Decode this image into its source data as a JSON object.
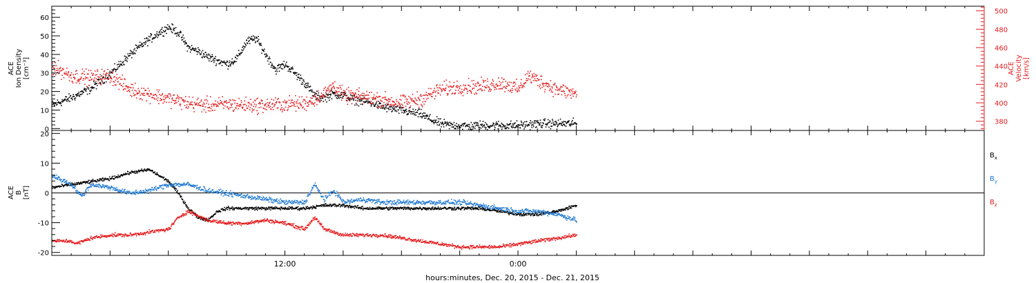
{
  "footer": {
    "xlabel": "hours:minutes, Dec. 20, 2015 - Dec. 21, 2015"
  },
  "colors": {
    "black": "#000000",
    "red": "#e41a1c",
    "blue": "#1f78d1"
  },
  "chart_data": [
    {
      "type": "scatter",
      "panel": "top",
      "ylabel_left": [
        "ACE",
        "Ion Density",
        "[cm⁻³]"
      ],
      "ylabel_right": [
        "ACE",
        "Velocity",
        "[km/s]"
      ],
      "x_axis": {
        "unit": "hours from Dec. 20 00:00",
        "range": [
          0,
          48
        ],
        "tick_labels": [
          {
            "x": 12,
            "label": "12:00"
          },
          {
            "x": 24,
            "label": "0:00"
          }
        ]
      },
      "y_left": {
        "range": [
          -1,
          66
        ],
        "ticks": [
          0,
          10,
          20,
          30,
          40,
          50,
          60
        ]
      },
      "y_right": {
        "range": [
          370,
          505
        ],
        "ticks": [
          380,
          400,
          420,
          440,
          460,
          480,
          500
        ]
      },
      "series": [
        {
          "color": "black",
          "axis": "left",
          "scatter": 3.5,
          "x": [
            0,
            1,
            2,
            3,
            4,
            4.8,
            5.5,
            6,
            6.5,
            7,
            7.5,
            8,
            8.5,
            9,
            9.5,
            10,
            10.5,
            11,
            11.5,
            12,
            12.5,
            13,
            13.5,
            14,
            14.5,
            15,
            15.5,
            16,
            16.5,
            17,
            17.5,
            18,
            18.5,
            19,
            19.5,
            20,
            20.5,
            21,
            21.5,
            22,
            23,
            24,
            25,
            26,
            27
          ],
          "y": [
            13,
            17,
            22,
            30,
            40,
            47,
            52,
            55,
            52,
            44,
            42,
            39,
            37,
            35,
            38,
            47,
            49,
            40,
            32,
            35,
            30,
            25,
            18,
            17,
            19,
            18,
            16,
            15,
            14,
            12,
            11,
            10,
            9,
            8,
            5,
            3,
            2,
            2,
            1.5,
            2,
            2,
            2,
            3,
            3,
            3
          ]
        },
        {
          "color": "red",
          "axis": "right",
          "scatter": 12,
          "x": [
            0,
            1,
            2,
            3,
            4,
            5,
            6,
            7,
            8,
            9,
            10,
            11,
            12,
            13,
            14,
            14.5,
            15,
            16,
            17,
            18,
            19,
            20,
            21,
            22,
            23,
            23.5,
            24,
            24.5,
            25,
            25.5,
            26,
            27
          ],
          "y": [
            440,
            430,
            428,
            430,
            415,
            410,
            405,
            400,
            398,
            399,
            398,
            398,
            399,
            400,
            410,
            420,
            408,
            407,
            404,
            400,
            405,
            415,
            418,
            418,
            422,
            420,
            415,
            430,
            425,
            420,
            415,
            410
          ]
        }
      ]
    },
    {
      "type": "scatter",
      "panel": "bottom",
      "ylabel_left": [
        "ACE",
        "B",
        "[nT]"
      ],
      "x_axis": {
        "unit": "hours from Dec. 20 00:00",
        "range": [
          0,
          48
        ]
      },
      "y_left": {
        "range": [
          -21,
          21
        ],
        "ticks": [
          -20,
          -10,
          0,
          10,
          20
        ]
      },
      "zero_line": true,
      "legend": [
        {
          "label": "B",
          "sub": "x",
          "color": "black"
        },
        {
          "label": "B",
          "sub": "y",
          "color": "blue"
        },
        {
          "label": "B",
          "sub": "z",
          "color": "red"
        }
      ],
      "series": [
        {
          "color": "black",
          "scatter": 0.8,
          "x": [
            0,
            1,
            2,
            3,
            4,
            5,
            6,
            6.5,
            7,
            7.5,
            8,
            8.5,
            9,
            10,
            11,
            12,
            13,
            14,
            15,
            16,
            17,
            18,
            19,
            20,
            21,
            22,
            23,
            24,
            25,
            26,
            27
          ],
          "y": [
            2,
            3,
            4,
            5,
            7,
            8,
            4,
            0,
            -5,
            -8,
            -9,
            -6,
            -5,
            -5,
            -5,
            -5,
            -5,
            -4,
            -4,
            -5,
            -5,
            -5,
            -5,
            -5,
            -5,
            -5,
            -6,
            -7,
            -7,
            -6,
            -4
          ]
        },
        {
          "color": "blue",
          "scatter": 1.2,
          "x": [
            0,
            1,
            1.5,
            2,
            3,
            4,
            5,
            6,
            7,
            8,
            9,
            10,
            11,
            12,
            13,
            13.5,
            14,
            14.5,
            15,
            16,
            17,
            18,
            19,
            20,
            21,
            22,
            23,
            24,
            25,
            26,
            27
          ],
          "y": [
            6,
            3,
            -1,
            3,
            2,
            0,
            1,
            3,
            3,
            1,
            0,
            -1,
            -2,
            -3,
            -3,
            3,
            -2,
            1,
            -3,
            -2,
            -3,
            -3,
            -3,
            -3,
            -3,
            -4,
            -5,
            -6,
            -6,
            -7,
            -9
          ]
        },
        {
          "color": "red",
          "scatter": 0.9,
          "x": [
            0,
            1,
            1.2,
            2,
            3,
            4,
            5,
            6,
            6.5,
            7,
            8,
            9,
            10,
            11,
            12,
            13,
            13.5,
            14,
            15,
            16,
            17,
            18,
            19,
            20,
            21,
            22,
            23,
            24,
            25,
            26,
            27
          ],
          "y": [
            -16,
            -16,
            -17,
            -15,
            -14,
            -14,
            -13,
            -12,
            -8,
            -6,
            -9,
            -10,
            -10,
            -9,
            -10,
            -12,
            -8,
            -12,
            -14,
            -14,
            -14,
            -15,
            -16,
            -17,
            -18,
            -18,
            -18,
            -17,
            -16,
            -15,
            -14
          ]
        }
      ]
    }
  ]
}
